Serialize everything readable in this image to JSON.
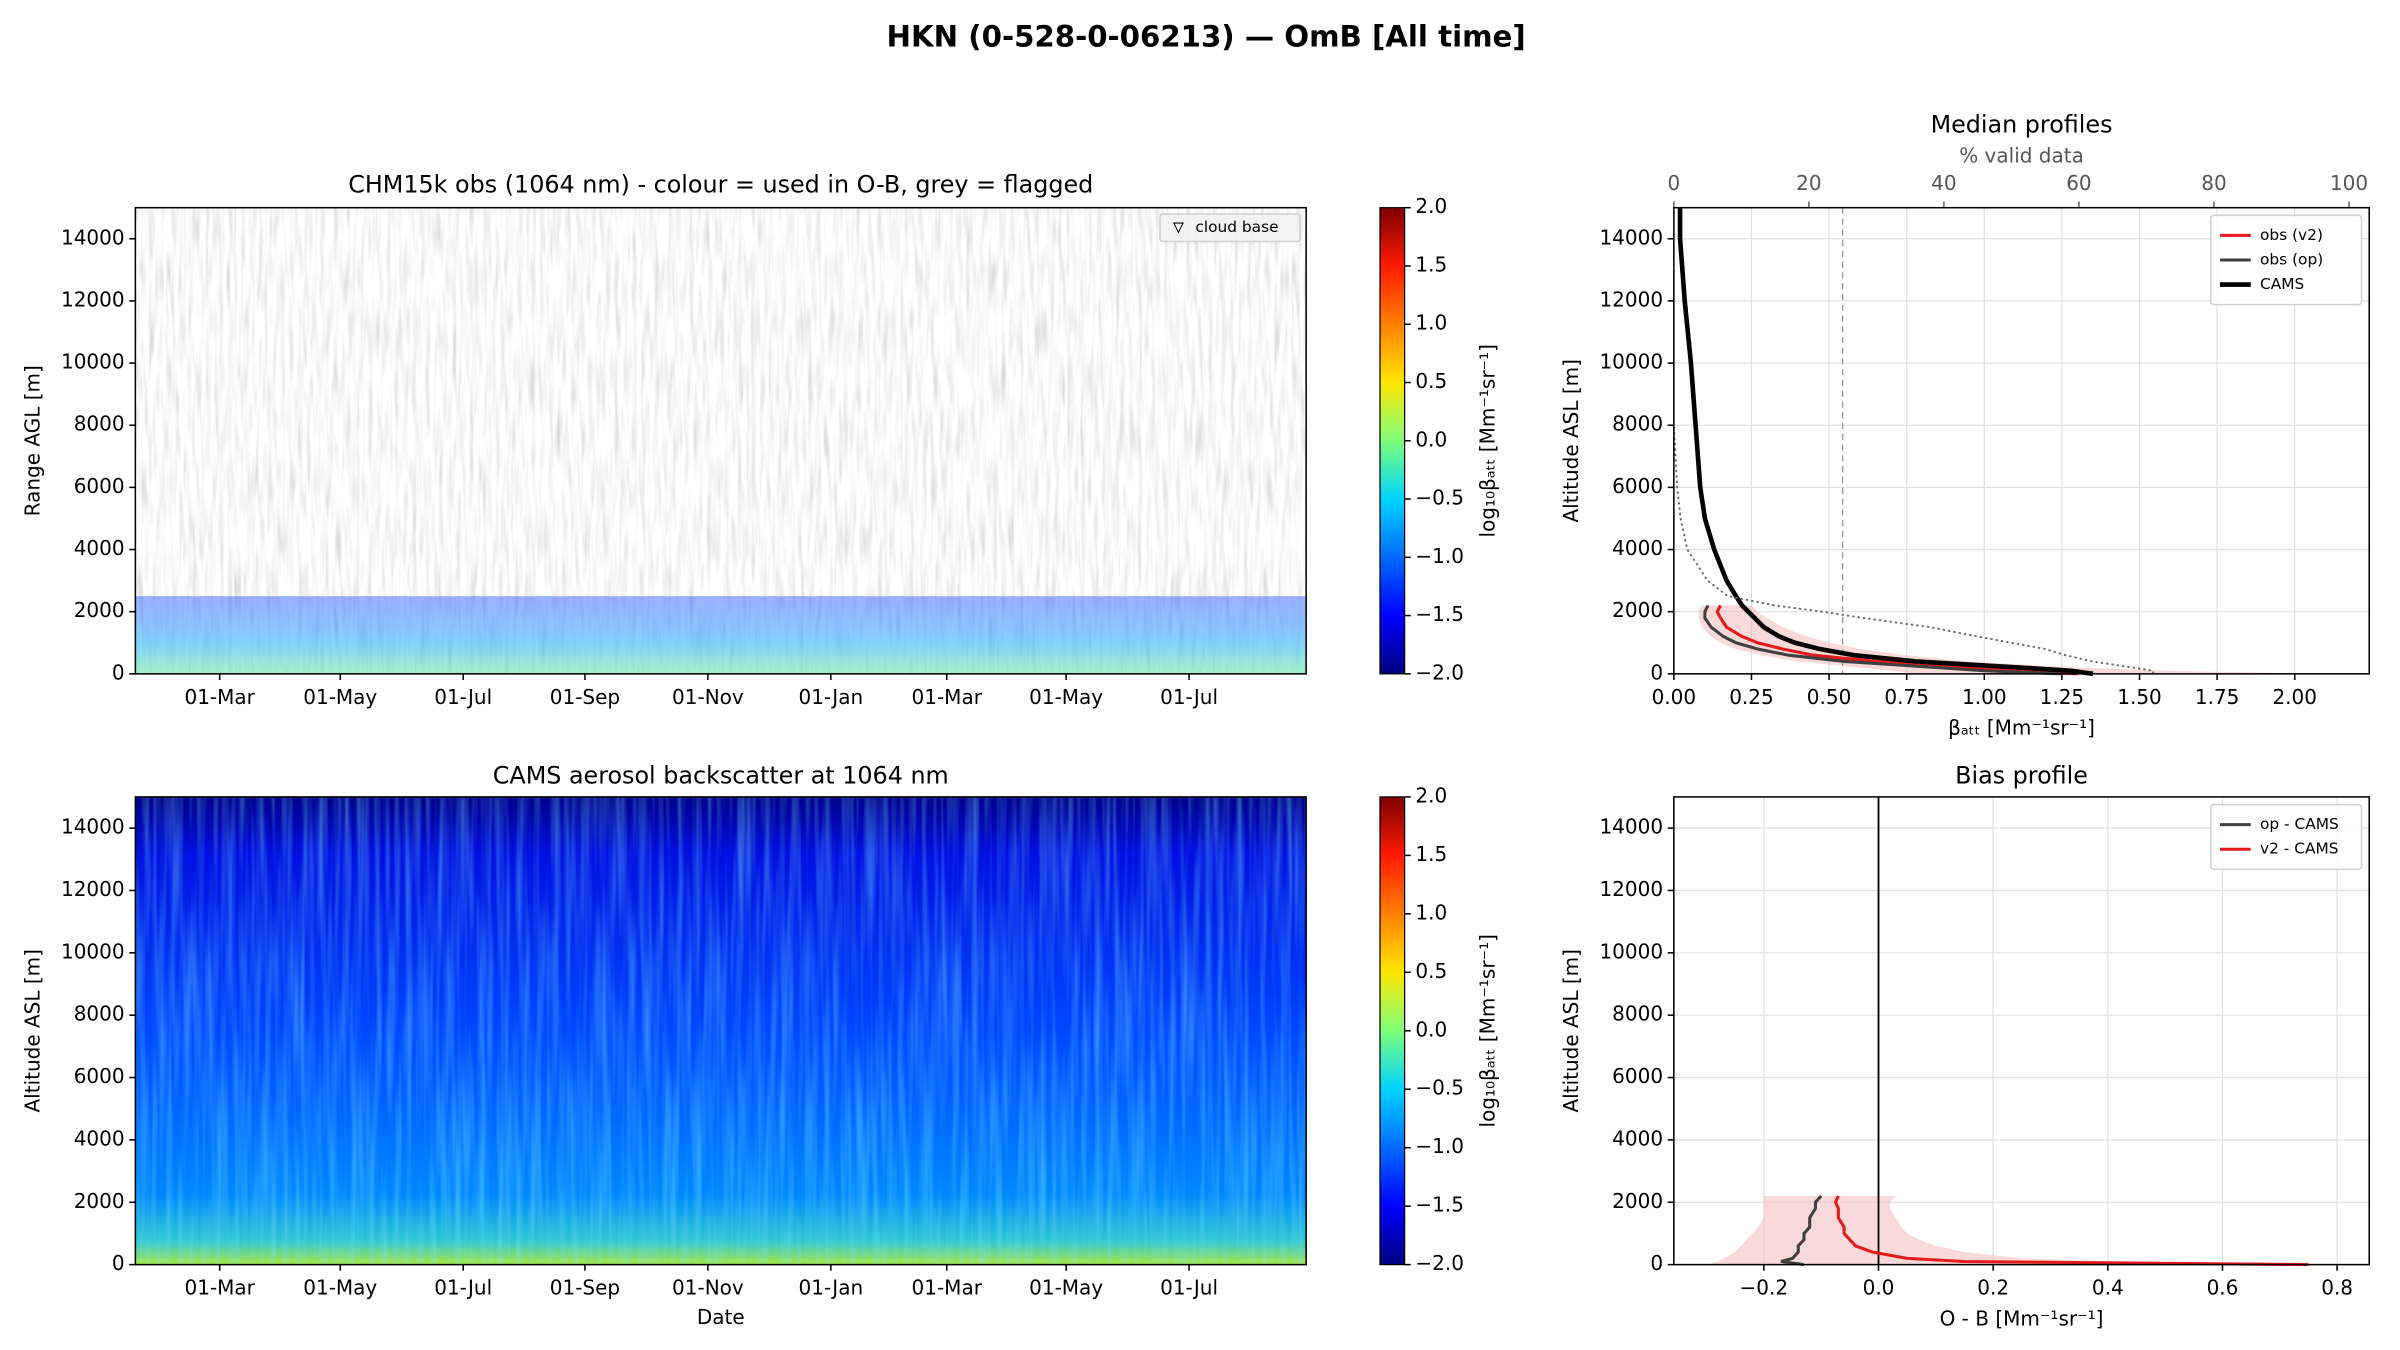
{
  "title": "HKN (0-528-0-06213) — OmB [All time]",
  "chart_data": [
    {
      "type": "heatmap",
      "title": "CHM15k obs (1064 nm) - colour = used in O-B, grey = flagged",
      "ylabel": "Range AGL [m]",
      "ylim": [
        0,
        15000
      ],
      "yticks": [
        0,
        2000,
        4000,
        6000,
        8000,
        10000,
        12000,
        14000
      ],
      "xticks": [
        "01-Mar",
        "01-May",
        "01-Jul",
        "01-Sep",
        "01-Nov",
        "01-Jan",
        "01-Mar",
        "01-May",
        "01-Jul"
      ],
      "legend_label": "cloud base",
      "colorbar": {
        "label": "log₁₀βₐₜₜ [Mm⁻¹sr⁻¹]",
        "lim": [
          -2,
          2
        ],
        "ticks": [
          {
            "value": -2,
            "label": "−2.0"
          },
          {
            "value": -1.5,
            "label": "−1.5"
          },
          {
            "value": -1,
            "label": "−1.0"
          },
          {
            "value": -0.5,
            "label": "−0.5"
          },
          {
            "value": 0,
            "label": "0.0"
          },
          0.5,
          {
            "value": 1,
            "label": "1.0"
          },
          1.5,
          {
            "value": 2,
            "label": "2.0"
          }
        ]
      }
    },
    {
      "type": "heatmap",
      "title": "CAMS aerosol backscatter at 1064 nm",
      "ylabel": "Altitude ASL [m]",
      "xlabel": "Date",
      "ylim": [
        0,
        15000
      ],
      "yticks": [
        0,
        2000,
        4000,
        6000,
        8000,
        10000,
        12000,
        14000
      ],
      "xticks": [
        "01-Mar",
        "01-May",
        "01-Jul",
        "01-Sep",
        "01-Nov",
        "01-Jan",
        "01-Mar",
        "01-May",
        "01-Jul"
      ],
      "colorbar": {
        "label": "log₁₀βₐₜₜ [Mm⁻¹sr⁻¹]",
        "lim": [
          -2,
          2
        ],
        "ticks": [
          {
            "value": -2,
            "label": "−2.0"
          },
          {
            "value": -1.5,
            "label": "−1.5"
          },
          {
            "value": -1,
            "label": "−1.0"
          },
          {
            "value": -0.5,
            "label": "−0.5"
          },
          {
            "value": 0,
            "label": "0.0"
          },
          0.5,
          {
            "value": 1,
            "label": "1.0"
          },
          1.5,
          {
            "value": 2,
            "label": "2.0"
          }
        ]
      }
    },
    {
      "type": "profile",
      "title": "Median profiles",
      "xlabel": "βₐₜₜ [Mm⁻¹sr⁻¹]",
      "ylabel": "Altitude ASL [m]",
      "x2label": "% valid data",
      "xlim": [
        0,
        2.24
      ],
      "xticks": [
        {
          "value": 0,
          "label": "0.00"
        },
        {
          "value": 0.25,
          "label": "0.25"
        },
        {
          "value": 0.5,
          "label": "0.50"
        },
        {
          "value": 0.75,
          "label": "0.75"
        },
        {
          "value": 1,
          "label": "1.00"
        },
        {
          "value": 1.25,
          "label": "1.25"
        },
        {
          "value": 1.5,
          "label": "1.50"
        },
        {
          "value": 1.75,
          "label": "1.75"
        },
        {
          "value": 2,
          "label": "2.00"
        }
      ],
      "x2lim": [
        0,
        103
      ],
      "x2ticks": [
        0,
        20,
        40,
        60,
        80,
        100
      ],
      "ylim": [
        0,
        15000
      ],
      "yticks": [
        0,
        2000,
        4000,
        6000,
        8000,
        10000,
        12000,
        14000
      ],
      "grid": true,
      "legend": "upper right",
      "reference_line": {
        "value": 25,
        "axis": "x2",
        "color": "#999999"
      },
      "y": [
        0,
        100,
        200,
        400,
        600,
        800,
        1000,
        1200,
        1500,
        1800,
        2000,
        2200,
        2500,
        3000,
        4000,
        5000,
        6000,
        8000,
        10000,
        12000,
        14000,
        15000
      ],
      "band": {
        "color": "#f3b3b3",
        "low": [
          0.8,
          0.7,
          0.6,
          0.4,
          0.28,
          0.2,
          0.15,
          0.12,
          0.09,
          0.08,
          0.08,
          0.09,
          null,
          null,
          null,
          null,
          null,
          null,
          null,
          null,
          null,
          null
        ],
        "high": [
          2.1,
          1.6,
          1.3,
          0.95,
          0.75,
          0.6,
          0.5,
          0.43,
          0.35,
          0.3,
          0.27,
          0.25,
          null,
          null,
          null,
          null,
          null,
          null,
          null,
          null,
          null,
          null
        ]
      },
      "series": [
        {
          "name": "obs (v2)",
          "color": "#e41a1c",
          "width": 2,
          "values": [
            1.3,
            1.1,
            0.95,
            0.65,
            0.45,
            0.35,
            0.27,
            0.22,
            0.17,
            0.15,
            0.14,
            0.15,
            null,
            null,
            null,
            null,
            null,
            null,
            null,
            null,
            null,
            null
          ]
        },
        {
          "name": "obs (op)",
          "color": "#404040",
          "width": 2,
          "values": [
            1.25,
            1.0,
            0.85,
            0.55,
            0.37,
            0.27,
            0.2,
            0.16,
            0.12,
            0.1,
            0.1,
            0.11,
            null,
            null,
            null,
            null,
            null,
            null,
            null,
            null,
            null,
            null
          ]
        },
        {
          "name": "CAMS",
          "color": "#000000",
          "width": 3,
          "values": [
            1.35,
            1.28,
            1.12,
            0.78,
            0.58,
            0.47,
            0.39,
            0.34,
            0.29,
            0.26,
            0.24,
            0.22,
            0.2,
            0.17,
            0.13,
            0.1,
            0.085,
            0.07,
            0.055,
            0.035,
            0.02,
            0.02
          ]
        },
        {
          "color": "#666666",
          "width": 1.2,
          "style": "dotted",
          "axis": "x2",
          "values": [
            71,
            71,
            68,
            62,
            58,
            55,
            50,
            45,
            38,
            28,
            22,
            15,
            8,
            5,
            2,
            1,
            0.5,
            0,
            null,
            null,
            null,
            null
          ]
        }
      ]
    },
    {
      "type": "profile",
      "title": "Bias profile",
      "xlabel": "O - B [Mm⁻¹sr⁻¹]",
      "ylabel": "Altitude ASL [m]",
      "xlim": [
        -0.357,
        0.856
      ],
      "xticks": [
        {
          "value": -0.2,
          "label": "−0.2"
        },
        {
          "value": 0,
          "label": "0.0"
        },
        0.2,
        0.4,
        0.6,
        0.8
      ],
      "ylim": [
        0,
        15000
      ],
      "yticks": [
        0,
        2000,
        4000,
        6000,
        8000,
        10000,
        12000,
        14000
      ],
      "grid": true,
      "legend": "upper right",
      "reference_line": {
        "value": 0,
        "axis": "x",
        "color": "#000000"
      },
      "y": [
        0,
        100,
        200,
        400,
        600,
        800,
        1000,
        1200,
        1500,
        1800,
        2000,
        2200,
        2500,
        3000,
        4000,
        5000,
        6000,
        8000,
        10000,
        12000,
        14000,
        15000
      ],
      "band": {
        "color": "#f3b3b3",
        "low": [
          -0.3,
          -0.28,
          -0.27,
          -0.25,
          -0.24,
          -0.23,
          -0.22,
          -0.21,
          -0.2,
          -0.2,
          -0.2,
          -0.2,
          null,
          null,
          null,
          null,
          null,
          null,
          null,
          null,
          null,
          null
        ],
        "high": [
          0.8,
          0.4,
          0.25,
          0.15,
          0.1,
          0.07,
          0.05,
          0.04,
          0.03,
          0.02,
          0.02,
          0.03,
          null,
          null,
          null,
          null,
          null,
          null,
          null,
          null,
          null,
          null
        ]
      },
      "series": [
        {
          "name": "op - CAMS",
          "color": "#404040",
          "width": 2,
          "values": [
            -0.13,
            -0.17,
            -0.15,
            -0.14,
            -0.14,
            -0.13,
            -0.13,
            -0.12,
            -0.12,
            -0.11,
            -0.11,
            -0.1,
            null,
            null,
            null,
            null,
            null,
            null,
            null,
            null,
            null,
            null
          ]
        },
        {
          "name": "v2 - CAMS",
          "color": "#e41a1c",
          "width": 2,
          "values": [
            0.75,
            0.15,
            0.05,
            -0.01,
            -0.04,
            -0.05,
            -0.06,
            -0.06,
            -0.07,
            -0.07,
            -0.075,
            -0.07,
            null,
            null,
            null,
            null,
            null,
            null,
            null,
            null,
            null,
            null
          ]
        }
      ]
    }
  ]
}
